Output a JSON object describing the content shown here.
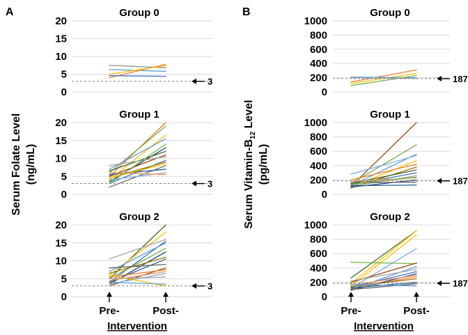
{
  "panels": [
    {
      "letter": "A",
      "ylabel_line1": "Serum Folate Level",
      "ylabel_line2": "(ng/mL)"
    },
    {
      "letter": "B",
      "ylabel_line1": "Serum Vitamin-B",
      "ylabel_sub": "12",
      "ylabel_tail": " Level",
      "ylabel_line2": "(pg/mL)"
    }
  ],
  "x_axis": {
    "pre": "Pre-",
    "post": "Post-",
    "title": "Intervention"
  },
  "chart_data": [
    {
      "type": "line",
      "panel": "A",
      "title": "Group 0",
      "ylim": [
        0,
        20
      ],
      "yticks": [
        0,
        5,
        10,
        15,
        20
      ],
      "categories": [
        "Pre-",
        "Post-"
      ],
      "reference": {
        "value": 3,
        "label": "3"
      },
      "series": [
        {
          "values": [
            7.5,
            6.8
          ],
          "color": "#8c8c8c"
        },
        {
          "values": [
            6.3,
            5.8
          ],
          "color": "#5b9bd5"
        },
        {
          "values": [
            4.0,
            7.8
          ],
          "color": "#ed7d31"
        },
        {
          "values": [
            5.0,
            7.4
          ],
          "color": "#ffc000"
        },
        {
          "values": [
            4.6,
            4.4
          ],
          "color": "#4472c4"
        }
      ]
    },
    {
      "type": "line",
      "panel": "A",
      "title": "Group 1",
      "ylim": [
        0,
        20
      ],
      "yticks": [
        0,
        5,
        10,
        15,
        20
      ],
      "categories": [
        "Pre-",
        "Post-"
      ],
      "reference": {
        "value": 3,
        "label": "3"
      },
      "series": [
        {
          "values": [
            5.0,
            20.0
          ],
          "color": "#ed7d31"
        },
        {
          "values": [
            6.0,
            19.0
          ],
          "color": "#70ad47"
        },
        {
          "values": [
            4.0,
            16.5
          ],
          "color": "#ffc000"
        },
        {
          "values": [
            7.0,
            15.5
          ],
          "color": "#5b9bd5"
        },
        {
          "values": [
            3.5,
            13.0
          ],
          "color": "#264478"
        },
        {
          "values": [
            6.5,
            12.0
          ],
          "color": "#43682b"
        },
        {
          "values": [
            5.0,
            11.0
          ],
          "color": "#9e480e"
        },
        {
          "values": [
            8.0,
            10.5
          ],
          "color": "#a5a5a5"
        },
        {
          "values": [
            3.0,
            9.5
          ],
          "color": "#4472c4"
        },
        {
          "values": [
            4.5,
            9.0
          ],
          "color": "#997300"
        },
        {
          "values": [
            2.0,
            8.0
          ],
          "color": "#636363"
        },
        {
          "values": [
            5.5,
            7.0
          ],
          "color": "#255e91"
        },
        {
          "values": [
            4.0,
            6.0
          ],
          "color": "#7cafdd"
        },
        {
          "values": [
            6.0,
            5.5
          ],
          "color": "#f1975a"
        },
        {
          "values": [
            3.0,
            14.0
          ],
          "color": "#70ad47"
        },
        {
          "values": [
            4.5,
            8.5
          ],
          "color": "#ffc000"
        }
      ]
    },
    {
      "type": "line",
      "panel": "A",
      "title": "Group 2",
      "ylim": [
        0,
        20
      ],
      "yticks": [
        0,
        5,
        10,
        15,
        20
      ],
      "categories": [
        "Pre-",
        "Post-"
      ],
      "reference": {
        "value": 3,
        "label": "3"
      },
      "series": [
        {
          "values": [
            5.0,
            20.0
          ],
          "color": "#43682b"
        },
        {
          "values": [
            6.0,
            18.0
          ],
          "color": "#ffc000"
        },
        {
          "values": [
            10.5,
            16.0
          ],
          "color": "#a5a5a5"
        },
        {
          "values": [
            4.0,
            15.5
          ],
          "color": "#4472c4"
        },
        {
          "values": [
            7.0,
            15.0
          ],
          "color": "#5b9bd5"
        },
        {
          "values": [
            5.0,
            13.5
          ],
          "color": "#70ad47"
        },
        {
          "values": [
            3.5,
            12.5
          ],
          "color": "#264478"
        },
        {
          "values": [
            6.5,
            11.0
          ],
          "color": "#997300"
        },
        {
          "values": [
            4.0,
            10.5
          ],
          "color": "#255e91"
        },
        {
          "values": [
            8.0,
            9.0
          ],
          "color": "#636363"
        },
        {
          "values": [
            3.0,
            8.0
          ],
          "color": "#9e480e"
        },
        {
          "values": [
            5.5,
            7.5
          ],
          "color": "#ed7d31"
        },
        {
          "values": [
            4.5,
            7.0
          ],
          "color": "#f1975a"
        },
        {
          "values": [
            3.5,
            6.5
          ],
          "color": "#7cafdd"
        },
        {
          "values": [
            6.0,
            3.0
          ],
          "color": "#ffc000"
        },
        {
          "values": [
            4.0,
            3.5
          ],
          "color": "#5b9bd5"
        },
        {
          "values": [
            5.0,
            5.5
          ],
          "color": "#a5a5a5"
        }
      ]
    },
    {
      "type": "line",
      "panel": "B",
      "title": "Group 0",
      "ylim": [
        0,
        1000
      ],
      "yticks": [
        0,
        200,
        400,
        600,
        800,
        1000
      ],
      "categories": [
        "Pre-",
        "Post-"
      ],
      "reference": {
        "value": 187,
        "label": "187"
      },
      "series": [
        {
          "values": [
            140,
            310
          ],
          "color": "#ed7d31"
        },
        {
          "values": [
            120,
            260
          ],
          "color": "#ffc000"
        },
        {
          "values": [
            210,
            200
          ],
          "color": "#5b9bd5"
        },
        {
          "values": [
            90,
            230
          ],
          "color": "#70ad47"
        },
        {
          "values": [
            200,
            190
          ],
          "color": "#a5a5a5"
        }
      ]
    },
    {
      "type": "line",
      "panel": "B",
      "title": "Group 1",
      "ylim": [
        0,
        1000
      ],
      "yticks": [
        0,
        200,
        400,
        600,
        800,
        1000
      ],
      "categories": [
        "Pre-",
        "Post-"
      ],
      "reference": {
        "value": 187,
        "label": "187"
      },
      "series": [
        {
          "values": [
            110,
            1000
          ],
          "color": "#9e480e"
        },
        {
          "values": [
            150,
            690
          ],
          "color": "#70ad47"
        },
        {
          "values": [
            120,
            560
          ],
          "color": "#5b9bd5"
        },
        {
          "values": [
            280,
            540
          ],
          "color": "#7cafdd"
        },
        {
          "values": [
            100,
            470
          ],
          "color": "#ffc000"
        },
        {
          "values": [
            200,
            420
          ],
          "color": "#ed7d31"
        },
        {
          "values": [
            90,
            380
          ],
          "color": "#997300"
        },
        {
          "values": [
            150,
            340
          ],
          "color": "#43682b"
        },
        {
          "values": [
            130,
            300
          ],
          "color": "#4472c4"
        },
        {
          "values": [
            110,
            260
          ],
          "color": "#a5a5a5"
        },
        {
          "values": [
            180,
            230
          ],
          "color": "#f1975a"
        },
        {
          "values": [
            100,
            200
          ],
          "color": "#264478"
        },
        {
          "values": [
            160,
            170
          ],
          "color": "#636363"
        },
        {
          "values": [
            120,
            130
          ],
          "color": "#255e91"
        },
        {
          "values": [
            140,
            240
          ],
          "color": "#70ad47"
        }
      ]
    },
    {
      "type": "line",
      "panel": "B",
      "title": "Group 2",
      "ylim": [
        0,
        1000
      ],
      "yticks": [
        0,
        200,
        400,
        600,
        800,
        1000
      ],
      "categories": [
        "Pre-",
        "Post-"
      ],
      "reference": {
        "value": 187,
        "label": "187"
      },
      "series": [
        {
          "values": [
            260,
            920
          ],
          "color": "#43682b"
        },
        {
          "values": [
            180,
            920
          ],
          "color": "#ffc000"
        },
        {
          "values": [
            150,
            860
          ],
          "color": "#ffc000"
        },
        {
          "values": [
            120,
            670
          ],
          "color": "#7cafdd"
        },
        {
          "values": [
            480,
            460
          ],
          "color": "#70ad47"
        },
        {
          "values": [
            200,
            470
          ],
          "color": "#9e480e"
        },
        {
          "values": [
            100,
            420
          ],
          "color": "#5b9bd5"
        },
        {
          "values": [
            220,
            380
          ],
          "color": "#a5a5a5"
        },
        {
          "values": [
            130,
            350
          ],
          "color": "#4472c4"
        },
        {
          "values": [
            90,
            320
          ],
          "color": "#264478"
        },
        {
          "values": [
            160,
            300
          ],
          "color": "#f1975a"
        },
        {
          "values": [
            110,
            280
          ],
          "color": "#ed7d31"
        },
        {
          "values": [
            140,
            250
          ],
          "color": "#997300"
        },
        {
          "values": [
            120,
            200
          ],
          "color": "#255e91"
        },
        {
          "values": [
            100,
            180
          ],
          "color": "#636363"
        },
        {
          "values": [
            170,
            150
          ],
          "color": "#5b9bd5"
        }
      ]
    }
  ]
}
